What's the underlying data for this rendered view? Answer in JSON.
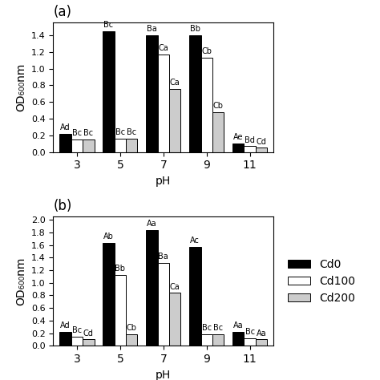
{
  "chart_data": [
    {
      "type": "bar",
      "title": "(a)",
      "x_label": "pH",
      "y_label": "OD₆₀₀nm",
      "categories": [
        "3",
        "5",
        "7",
        "9",
        "11"
      ],
      "ylim": [
        0,
        1.55
      ],
      "yticks": [
        0.0,
        0.2,
        0.4,
        0.6,
        0.8,
        1.0,
        1.2,
        1.4
      ],
      "series": [
        {
          "name": "Cd0",
          "color": "#000000",
          "values": [
            0.22,
            1.45,
            1.4,
            1.4,
            0.1
          ],
          "annotations": [
            "Ad",
            "Bc",
            "Ba",
            "Bb",
            "Ae"
          ]
        },
        {
          "name": "Cd100",
          "color": "#ffffff",
          "values": [
            0.15,
            0.16,
            1.17,
            1.13,
            0.07
          ],
          "annotations": [
            "Bc",
            "Bc",
            "Ca",
            "Cb",
            "Bd"
          ]
        },
        {
          "name": "Cd200",
          "color": "#cccccc",
          "values": [
            0.15,
            0.16,
            0.76,
            0.48,
            0.05
          ],
          "annotations": [
            "Bc",
            "Bc",
            "Ca",
            "Cb",
            "Cd"
          ]
        }
      ]
    },
    {
      "type": "bar",
      "title": "(b)",
      "x_label": "pH",
      "y_label": "OD₆₀₀nm",
      "categories": [
        "3",
        "5",
        "7",
        "9",
        "11"
      ],
      "ylim": [
        0,
        2.05
      ],
      "yticks": [
        0.0,
        0.2,
        0.4,
        0.6,
        0.8,
        1.0,
        1.2,
        1.4,
        1.6,
        1.8,
        2.0
      ],
      "legend": "center left",
      "series": [
        {
          "name": "Cd0",
          "color": "#000000",
          "values": [
            0.22,
            1.63,
            1.84,
            1.57,
            0.22
          ],
          "annotations": [
            "Ad",
            "Ab",
            "Aa",
            "Ac",
            "Aa"
          ]
        },
        {
          "name": "Cd100",
          "color": "#ffffff",
          "values": [
            0.15,
            1.13,
            1.32,
            0.18,
            0.12
          ],
          "annotations": [
            "Bc",
            "Bb",
            "Ba",
            "Bc",
            "Bc"
          ]
        },
        {
          "name": "Cd200",
          "color": "#cccccc",
          "values": [
            0.1,
            0.18,
            0.84,
            0.18,
            0.1
          ],
          "annotations": [
            "Cd",
            "Cb",
            "Ca",
            "Bc",
            "Aa"
          ]
        }
      ]
    }
  ]
}
